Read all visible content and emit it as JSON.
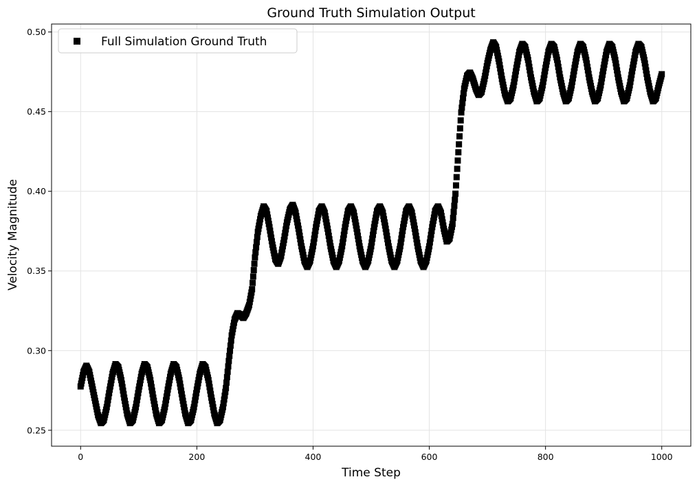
{
  "chart_data": {
    "type": "scatter",
    "title": "Ground Truth Simulation Output",
    "xlabel": "Time Step",
    "ylabel": "Velocity Magnitude",
    "xlim": [
      -50,
      1050
    ],
    "ylim": [
      0.24,
      0.505
    ],
    "x_ticks": [
      0,
      200,
      400,
      600,
      800,
      1000
    ],
    "x_tick_labels": [
      "0",
      "200",
      "400",
      "600",
      "800",
      "1000"
    ],
    "y_ticks": [
      0.25,
      0.3,
      0.35,
      0.4,
      0.45,
      0.5
    ],
    "y_tick_labels": [
      "0.25",
      "0.30",
      "0.35",
      "0.40",
      "0.45",
      "0.50"
    ],
    "grid": true,
    "legend_position": "top-left",
    "series": [
      {
        "name": "Full Simulation Ground Truth",
        "marker": "square",
        "color": "#000000",
        "x": [
          0,
          5,
          10,
          15,
          20,
          25,
          30,
          35,
          40,
          45,
          50,
          55,
          60,
          65,
          70,
          75,
          80,
          85,
          90,
          95,
          100,
          105,
          110,
          115,
          120,
          125,
          130,
          135,
          140,
          145,
          150,
          155,
          160,
          165,
          170,
          175,
          180,
          185,
          190,
          195,
          200,
          205,
          210,
          215,
          220,
          225,
          230,
          235,
          240,
          245,
          250,
          255,
          260,
          265,
          270,
          275,
          280,
          285,
          290,
          295,
          300,
          305,
          310,
          315,
          320,
          325,
          330,
          335,
          340,
          345,
          350,
          355,
          360,
          365,
          370,
          375,
          380,
          385,
          390,
          395,
          400,
          405,
          410,
          415,
          420,
          425,
          430,
          435,
          440,
          445,
          450,
          455,
          460,
          465,
          470,
          475,
          480,
          485,
          490,
          495,
          500,
          505,
          510,
          515,
          520,
          525,
          530,
          535,
          540,
          545,
          550,
          555,
          560,
          565,
          570,
          575,
          580,
          585,
          590,
          595,
          600,
          605,
          610,
          615,
          620,
          625,
          630,
          635,
          640,
          645,
          650,
          655,
          660,
          665,
          670,
          675,
          680,
          685,
          690,
          695,
          700,
          705,
          710,
          715,
          720,
          725,
          730,
          735,
          740,
          745,
          750,
          755,
          760,
          765,
          770,
          775,
          780,
          785,
          790,
          795,
          800,
          805,
          810,
          815,
          820,
          825,
          830,
          835,
          840,
          845,
          850,
          855,
          860,
          865,
          870,
          875,
          880,
          885,
          890,
          895,
          900,
          905,
          910,
          915,
          920,
          925,
          930,
          935,
          940,
          945,
          950,
          955,
          960,
          965,
          970,
          975,
          980,
          985,
          990,
          995,
          1000
        ],
        "y": [
          0.2775,
          0.2865,
          0.2905,
          0.2865,
          0.2775,
          0.2685,
          0.2595,
          0.2545,
          0.2565,
          0.2645,
          0.2755,
          0.2855,
          0.2915,
          0.2895,
          0.2815,
          0.2705,
          0.2605,
          0.2545,
          0.2565,
          0.2645,
          0.2755,
          0.2855,
          0.2915,
          0.2895,
          0.2815,
          0.2705,
          0.2605,
          0.2545,
          0.2565,
          0.2645,
          0.2755,
          0.2855,
          0.2915,
          0.2895,
          0.2815,
          0.2705,
          0.2605,
          0.2545,
          0.2565,
          0.2645,
          0.2755,
          0.2855,
          0.2915,
          0.2895,
          0.2815,
          0.2705,
          0.2605,
          0.2545,
          0.2565,
          0.2645,
          0.2765,
          0.2935,
          0.3095,
          0.3195,
          0.3235,
          0.3225,
          0.3205,
          0.3235,
          0.3285,
          0.3385,
          0.3585,
          0.3745,
          0.3845,
          0.3905,
          0.3875,
          0.3775,
          0.3665,
          0.3575,
          0.3545,
          0.3595,
          0.3695,
          0.3805,
          0.3885,
          0.3915,
          0.3865,
          0.3765,
          0.3655,
          0.3565,
          0.3525,
          0.3565,
          0.3655,
          0.3775,
          0.3875,
          0.3905,
          0.3865,
          0.3765,
          0.3655,
          0.3565,
          0.3525,
          0.3565,
          0.3655,
          0.3775,
          0.3875,
          0.3905,
          0.3865,
          0.3765,
          0.3655,
          0.3565,
          0.3525,
          0.3565,
          0.3655,
          0.3775,
          0.3875,
          0.3905,
          0.3865,
          0.3765,
          0.3655,
          0.3565,
          0.3525,
          0.3565,
          0.3655,
          0.3775,
          0.3875,
          0.3905,
          0.3865,
          0.3765,
          0.3655,
          0.3565,
          0.3525,
          0.3565,
          0.3655,
          0.3775,
          0.3875,
          0.3905,
          0.3865,
          0.3765,
          0.3685,
          0.3705,
          0.3795,
          0.3985,
          0.4245,
          0.4495,
          0.4645,
          0.4725,
          0.4745,
          0.4705,
          0.4645,
          0.4605,
          0.4625,
          0.4705,
          0.4805,
          0.4885,
          0.4935,
          0.4905,
          0.4815,
          0.4705,
          0.4615,
          0.4565,
          0.4585,
          0.4665,
          0.4775,
          0.4875,
          0.4925,
          0.4905,
          0.4825,
          0.4715,
          0.4625,
          0.4565,
          0.4585,
          0.4665,
          0.4775,
          0.4875,
          0.4925,
          0.4905,
          0.4825,
          0.4715,
          0.4625,
          0.4565,
          0.4585,
          0.4665,
          0.4775,
          0.4875,
          0.4925,
          0.4905,
          0.4825,
          0.4715,
          0.4625,
          0.4565,
          0.4585,
          0.4665,
          0.4775,
          0.4875,
          0.4925,
          0.4905,
          0.4825,
          0.4715,
          0.4625,
          0.4565,
          0.4585,
          0.4665,
          0.4775,
          0.4875,
          0.4925,
          0.4905,
          0.4825,
          0.4715,
          0.4625,
          0.4565,
          0.4585,
          0.4665,
          0.4735
        ]
      }
    ]
  }
}
